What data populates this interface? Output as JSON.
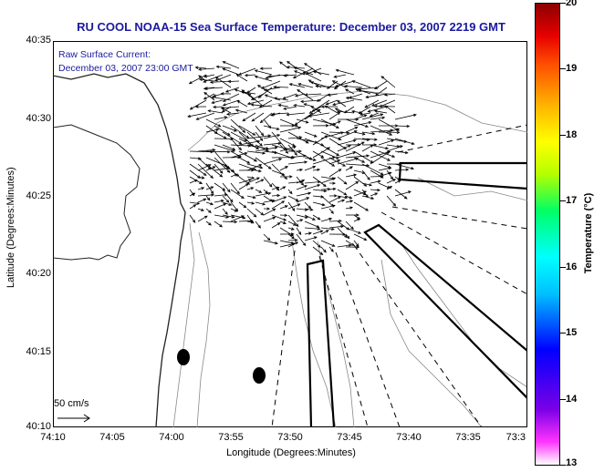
{
  "title": "RU COOL  NOAA-15  Sea Surface Temperature:  December 03, 2007 2219 GMT",
  "current_label_line1": "Raw Surface Current:",
  "current_label_line2": "December 03, 2007 23:00 GMT",
  "x_axis": {
    "title": "Longitude (Degrees:Minutes)",
    "ticks": [
      "74:10",
      "74:05",
      "74:00",
      "73:55",
      "73:50",
      "73:45",
      "73:40",
      "73:35",
      "73:3"
    ]
  },
  "y_axis": {
    "title": "Latitude (Degrees:Minutes)",
    "ticks": [
      "40:35",
      "40:30",
      "40:25",
      "40:20",
      "40:15",
      "40:10"
    ]
  },
  "colorbar": {
    "title": "Temperature (°C)",
    "range": [
      13,
      20
    ],
    "ticks": [
      "20",
      "19",
      "18",
      "17",
      "16",
      "15",
      "14",
      "13"
    ]
  },
  "scale_label": "50 cm/s",
  "colors": {
    "title": "#1a1aa0",
    "land": "#ffffff",
    "contour": "#888888"
  }
}
